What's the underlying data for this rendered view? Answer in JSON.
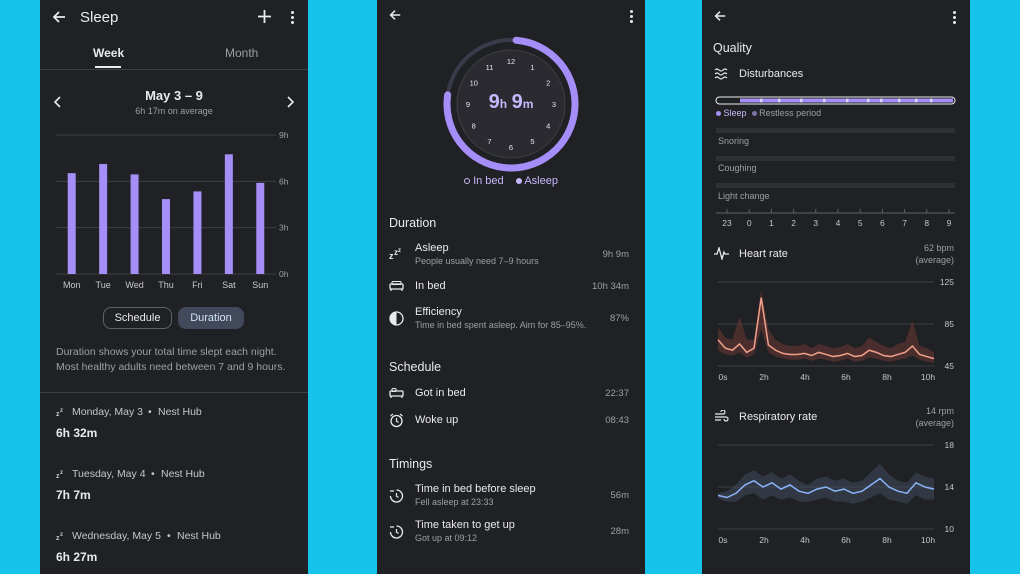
{
  "colors": {
    "accent": "#a58ef7",
    "bg": "#202124",
    "frame": "#16c3ea",
    "heart": "#f0a08a",
    "resp": "#8ab4f8"
  },
  "sleep_list": {
    "title": "Sleep",
    "tabs": [
      "Week",
      "Month"
    ],
    "range": "May 3 – 9",
    "average": "6h 17m on average",
    "y_ticks": [
      "9h",
      "6h",
      "3h",
      "0h"
    ],
    "toggle": {
      "schedule": "Schedule",
      "duration": "Duration"
    },
    "description": "Duration shows your total time slept each night. Most healthy adults need between 7 and 9 hours.",
    "entries": [
      {
        "day": "Monday, May 3",
        "device": "Nest Hub",
        "value": "6h 32m"
      },
      {
        "day": "Tuesday, May 4",
        "device": "Nest Hub",
        "value": "7h 7m"
      },
      {
        "day": "Wednesday, May 5",
        "device": "Nest Hub",
        "value": "6h 27m"
      }
    ],
    "separator": "•"
  },
  "chart_data": {
    "type": "bar",
    "title": "",
    "categories": [
      "Mon",
      "Tue",
      "Wed",
      "Thu",
      "Fri",
      "Sat",
      "Sun"
    ],
    "values": [
      6.53,
      7.12,
      6.45,
      4.85,
      5.35,
      7.75,
      5.9
    ],
    "ylim": [
      0,
      9
    ],
    "xlabel": "",
    "ylabel": "",
    "grid": true
  },
  "detail": {
    "clock_numbers": [
      "12",
      "1",
      "2",
      "3",
      "4",
      "5",
      "6",
      "7",
      "8",
      "9",
      "10",
      "11"
    ],
    "total_h": "9",
    "h_unit": "h",
    "total_m": "9",
    "m_unit": "m",
    "arc_fraction": 0.76,
    "legend": {
      "in_bed": "In bed",
      "asleep": "Asleep"
    },
    "sections": {
      "duration": {
        "title": "Duration",
        "rows": [
          {
            "label": "Asleep",
            "sub": "People usually need 7–9 hours",
            "value": "9h 9m"
          },
          {
            "label": "In bed",
            "sub": "",
            "value": "10h 34m"
          },
          {
            "label": "Efficiency",
            "sub": "Time in bed spent asleep. Aim for 85–95%.",
            "value": "87%"
          }
        ]
      },
      "schedule": {
        "title": "Schedule",
        "rows": [
          {
            "label": "Got in bed",
            "value": "22:37"
          },
          {
            "label": "Woke up",
            "value": "08:43"
          }
        ]
      },
      "timings": {
        "title": "Timings",
        "rows": [
          {
            "label": "Time in bed before sleep",
            "sub": "Fell asleep at 23:33",
            "value": "56m"
          },
          {
            "label": "Time taken to get up",
            "sub": "Got up at 09:12",
            "value": "28m"
          }
        ]
      }
    }
  },
  "quality": {
    "title": "Quality",
    "disturbances": {
      "title": "Disturbances",
      "legend_sleep": "Sleep",
      "legend_restless": "Restless period",
      "rows": [
        "Snoring",
        "Coughing",
        "Light change"
      ],
      "hours": [
        "23",
        "0",
        "1",
        "2",
        "3",
        "4",
        "5",
        "6",
        "7",
        "8",
        "9"
      ]
    },
    "heart_rate": {
      "title": "Heart rate",
      "value": "62 bpm",
      "sub": "(average)",
      "y_ticks": [
        "125",
        "85",
        "45"
      ],
      "x_ticks": [
        "0s",
        "2h",
        "4h",
        "6h",
        "8h",
        "10h"
      ]
    },
    "respiratory": {
      "title": "Respiratory rate",
      "value": "14 rpm",
      "sub": "(average)",
      "y_ticks": [
        "18",
        "14",
        "10"
      ],
      "x_ticks": [
        "0s",
        "2h",
        "4h",
        "6h",
        "8h",
        "10h"
      ]
    }
  }
}
